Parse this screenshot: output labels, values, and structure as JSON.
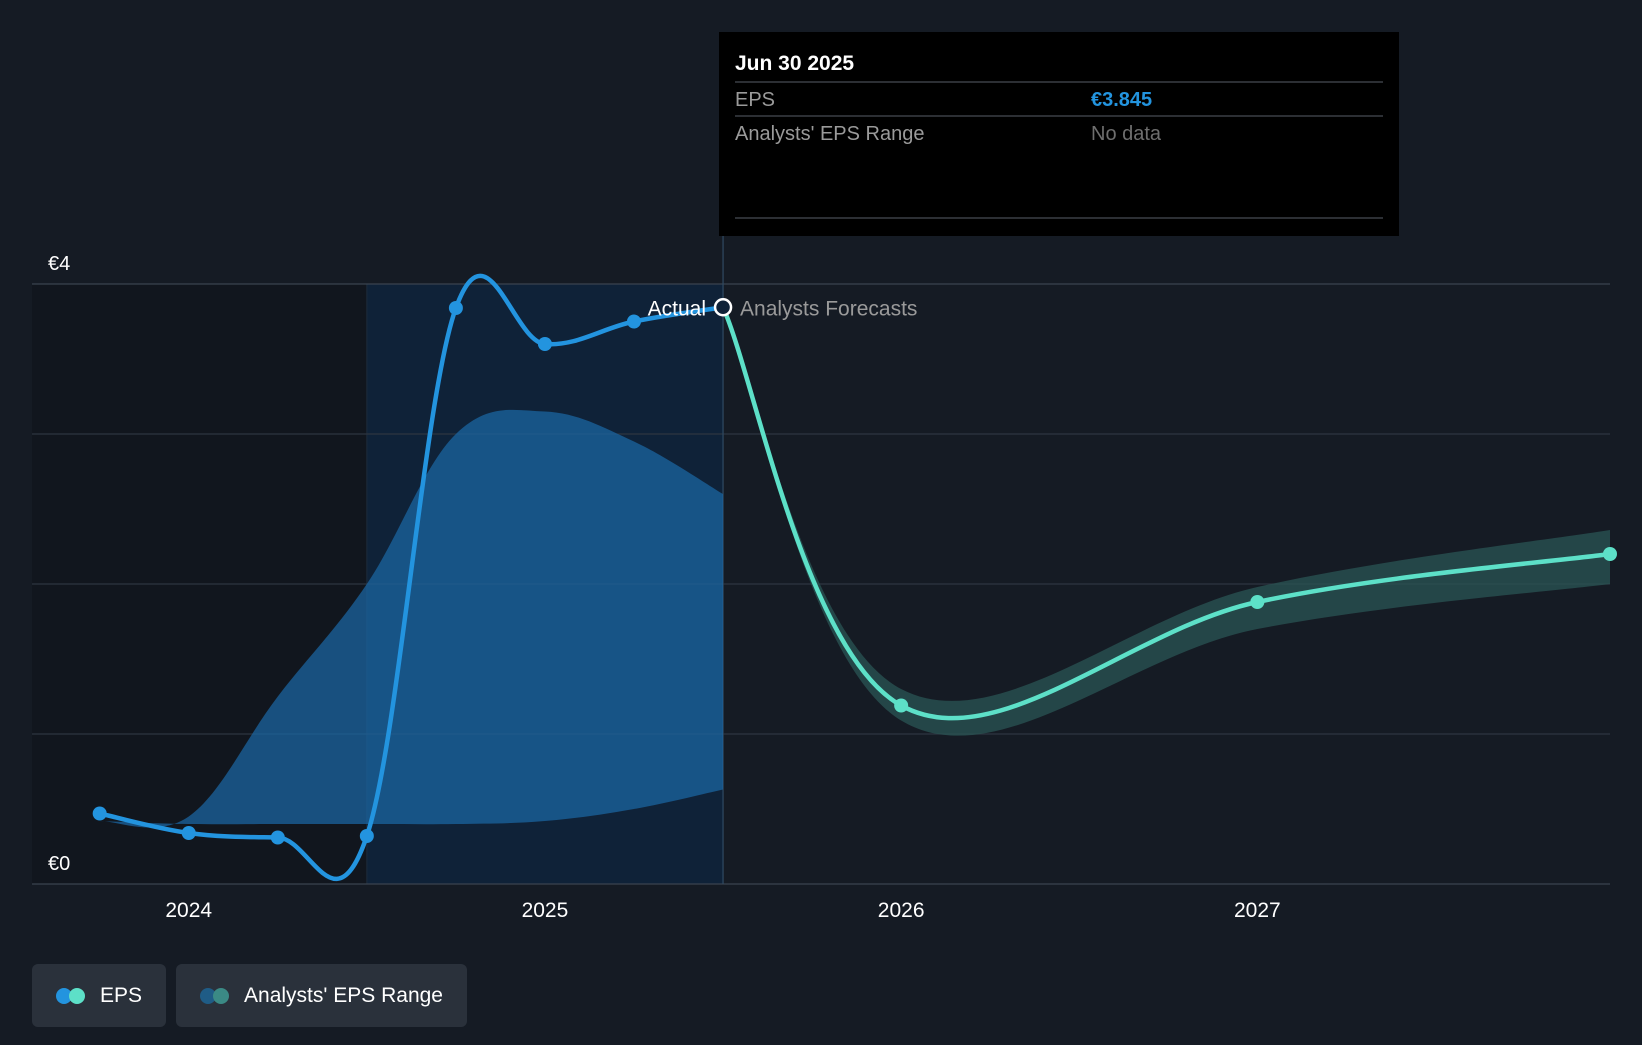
{
  "colors": {
    "background": "#151b24",
    "past_shade": "#11161e",
    "actual_band": "#0f2238",
    "eps_actual": "#2394df",
    "eps_forecast": "#5de0c8",
    "range_actual": "#1b6aa8",
    "range_forecast": "#2a5554",
    "grid": "#2d3540",
    "tooltip_bg": "#000000",
    "tooltip_value": "#2394df",
    "tooltip_muted": "#888888"
  },
  "tooltip": {
    "date": "Jun 30 2025",
    "rows": [
      {
        "label": "EPS",
        "value": "€3.845"
      },
      {
        "label": "Analysts' EPS Range",
        "value": "No data"
      }
    ]
  },
  "labels": {
    "actual": "Actual",
    "forecast": "Analysts Forecasts"
  },
  "legend": [
    {
      "label": "EPS",
      "icon": "eps-dots-icon",
      "colors": [
        "#2394df",
        "#5de0c8"
      ]
    },
    {
      "label": "Analysts' EPS Range",
      "icon": "range-dots-icon",
      "colors": [
        "#1f5c86",
        "#3b8a85"
      ]
    }
  ],
  "chart_data": {
    "type": "line",
    "title": "",
    "xlabel": "",
    "ylabel": "",
    "ylim": [
      0,
      4
    ],
    "y_tick_labels": [
      {
        "value": 0,
        "label": "€0"
      },
      {
        "value": 4,
        "label": "€4"
      }
    ],
    "y_gridlines": [
      0,
      1,
      2,
      3,
      4
    ],
    "x_ticks": [
      {
        "value": 2024.0,
        "label": "2024"
      },
      {
        "value": 2025.0,
        "label": "2025"
      },
      {
        "value": 2026.0,
        "label": "2026"
      },
      {
        "value": 2027.0,
        "label": "2027"
      }
    ],
    "xlim": [
      2023.56,
      2027.99
    ],
    "highlight_band": [
      2024.5,
      2025.5
    ],
    "divider_x": 2025.5,
    "series": [
      {
        "name": "EPS",
        "kind": "actual",
        "points": [
          {
            "x": 2023.75,
            "y": 0.47
          },
          {
            "x": 2024.0,
            "y": 0.34
          },
          {
            "x": 2024.25,
            "y": 0.31
          },
          {
            "x": 2024.5,
            "y": 0.32
          },
          {
            "x": 2024.75,
            "y": 3.84
          },
          {
            "x": 2025.0,
            "y": 3.6
          },
          {
            "x": 2025.25,
            "y": 3.75
          },
          {
            "x": 2025.5,
            "y": 3.845
          }
        ]
      },
      {
        "name": "EPS",
        "kind": "forecast",
        "points": [
          {
            "x": 2025.5,
            "y": 3.845
          },
          {
            "x": 2026.0,
            "y": 1.19
          },
          {
            "x": 2027.0,
            "y": 1.88
          },
          {
            "x": 2027.99,
            "y": 2.2
          }
        ]
      }
    ],
    "ranges": [
      {
        "name": "Analysts' EPS Range",
        "kind": "actual",
        "x": [
          2023.75,
          2024.0,
          2024.25,
          2024.5,
          2024.75,
          2025.0,
          2025.25,
          2025.5
        ],
        "low": [
          0.42,
          0.4,
          0.4,
          0.4,
          0.4,
          0.42,
          0.5,
          0.63
        ],
        "high": [
          0.42,
          0.45,
          1.25,
          2.0,
          3.0,
          3.15,
          2.95,
          2.6
        ]
      },
      {
        "name": "Analysts' EPS Range",
        "kind": "forecast",
        "x": [
          2025.5,
          2026.0,
          2027.0,
          2027.99
        ],
        "low": [
          3.845,
          1.09,
          1.7,
          2.0
        ],
        "high": [
          3.845,
          1.3,
          1.98,
          2.36
        ]
      }
    ]
  }
}
